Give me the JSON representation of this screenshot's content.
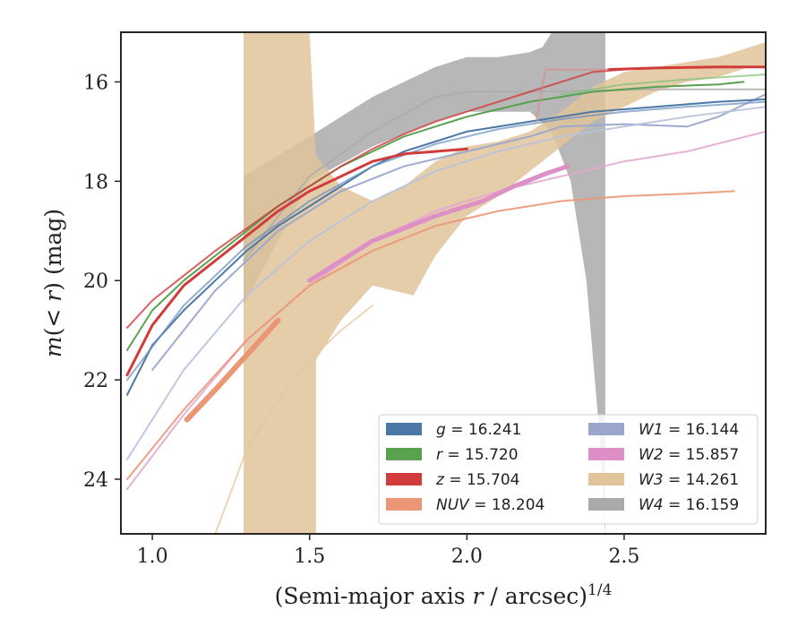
{
  "chart_data": {
    "type": "line",
    "xlabel": "(Semi-major axis r / arcsec)",
    "xlabel_main": "(Semi-major axis ",
    "xlabel_var": "r",
    "xlabel_rest": " / arcsec)",
    "xlabel_sup": "1/4",
    "ylabel": "m(< r) (mag)",
    "ylabel_m": "m",
    "ylabel_mid": "(< ",
    "ylabel_r": "r",
    "ylabel_end": ") (mag)",
    "xlim": [
      0.9,
      2.95
    ],
    "ylim": [
      25.1,
      15.0
    ],
    "y_inverted": true,
    "grid": false,
    "legend_position": "lower-right",
    "xticks": [
      {
        "value": 1.0,
        "label": "1.0"
      },
      {
        "value": 1.5,
        "label": "1.5"
      },
      {
        "value": 2.0,
        "label": "2.0"
      },
      {
        "value": 2.5,
        "label": "2.5"
      }
    ],
    "yticks": [
      {
        "value": 16,
        "label": "16"
      },
      {
        "value": 18,
        "label": "18"
      },
      {
        "value": 20,
        "label": "20"
      },
      {
        "value": 22,
        "label": "22"
      },
      {
        "value": 24,
        "label": "24"
      }
    ],
    "legend": [
      {
        "band": "g",
        "value": "16.241",
        "color": "#4c78a8"
      },
      {
        "band": "W1",
        "value": "16.144",
        "color": "#9aa6cc"
      },
      {
        "band": "r",
        "value": "15.720",
        "color": "#59a14f"
      },
      {
        "band": "W2",
        "value": "15.857",
        "color": "#de8fc6"
      },
      {
        "band": "z",
        "value": "15.704",
        "color": "#d13b3b"
      },
      {
        "band": "W3",
        "value": "14.261",
        "color": "#e2c49b"
      },
      {
        "band": "NUV",
        "value": "18.204",
        "color": "#eb9674"
      },
      {
        "band": "W4",
        "value": "16.159",
        "color": "#aaaaaa"
      }
    ],
    "bands": [
      {
        "name": "W4",
        "color": "#aaaaaa",
        "opacity": 0.85,
        "upper": [
          [
            1.29,
            17.9
          ],
          [
            1.5,
            17.1
          ],
          [
            1.7,
            16.3
          ],
          [
            1.9,
            15.7
          ],
          [
            2.0,
            15.5
          ],
          [
            2.1,
            15.5
          ],
          [
            2.2,
            15.4
          ],
          [
            2.24,
            15.3
          ],
          [
            2.27,
            15.0
          ],
          [
            2.44,
            15.0
          ]
        ],
        "lower": [
          [
            1.29,
            20.5
          ],
          [
            1.5,
            18.0
          ],
          [
            1.7,
            17.3
          ],
          [
            1.9,
            16.8
          ],
          [
            2.0,
            16.6
          ],
          [
            2.1,
            16.6
          ],
          [
            2.2,
            16.6
          ],
          [
            2.27,
            17.0
          ],
          [
            2.33,
            18.0
          ],
          [
            2.38,
            20.0
          ],
          [
            2.42,
            23.0
          ],
          [
            2.44,
            25.1
          ]
        ]
      },
      {
        "name": "W3",
        "color": "#e2c49b",
        "opacity": 0.85,
        "upper": [
          [
            1.29,
            15.0
          ],
          [
            1.5,
            15.0
          ],
          [
            1.52,
            17.5
          ],
          [
            1.6,
            18.1
          ],
          [
            1.7,
            18.4
          ],
          [
            1.8,
            18.1
          ],
          [
            1.9,
            17.6
          ],
          [
            2.0,
            17.3
          ],
          [
            2.1,
            17.2
          ],
          [
            2.2,
            17.0
          ],
          [
            2.3,
            16.6
          ],
          [
            2.4,
            16.1
          ],
          [
            2.5,
            15.8
          ],
          [
            2.6,
            15.7
          ],
          [
            2.7,
            15.6
          ],
          [
            2.8,
            15.5
          ],
          [
            2.9,
            15.3
          ],
          [
            2.95,
            15.2
          ]
        ],
        "lower": [
          [
            1.29,
            25.1
          ],
          [
            1.52,
            25.1
          ],
          [
            1.52,
            21.6
          ],
          [
            1.6,
            20.8
          ],
          [
            1.7,
            20.1
          ],
          [
            1.83,
            20.3
          ],
          [
            1.9,
            19.5
          ],
          [
            2.0,
            18.7
          ],
          [
            2.1,
            18.3
          ],
          [
            2.2,
            17.8
          ],
          [
            2.3,
            17.3
          ],
          [
            2.4,
            16.8
          ],
          [
            2.5,
            16.5
          ],
          [
            2.6,
            16.2
          ],
          [
            2.7,
            16.0
          ],
          [
            2.8,
            15.9
          ],
          [
            2.9,
            15.7
          ],
          [
            2.95,
            15.7
          ]
        ]
      }
    ],
    "series": [
      {
        "name": "W3",
        "color": "#e2c49b",
        "width": 2,
        "opacity": 0.7,
        "points": [
          [
            1.2,
            25.1
          ],
          [
            1.3,
            23.4
          ],
          [
            1.4,
            22.4
          ],
          [
            1.5,
            21.6
          ],
          [
            1.6,
            21.0
          ],
          [
            1.7,
            20.5
          ]
        ]
      },
      {
        "name": "W4",
        "color": "#aaaaaa",
        "width": 2,
        "opacity": 0.8,
        "points": [
          [
            1.29,
            19.6
          ],
          [
            1.5,
            17.9
          ],
          [
            1.7,
            17.0
          ],
          [
            1.9,
            16.3
          ],
          [
            2.0,
            16.2
          ],
          [
            2.2,
            16.2
          ],
          [
            2.6,
            16.15
          ],
          [
            2.95,
            16.15
          ]
        ]
      },
      {
        "name": "W1",
        "color": "#9aa6cc",
        "width": 2,
        "opacity": 0.95,
        "points": [
          [
            1.0,
            21.8
          ],
          [
            1.2,
            20.2
          ],
          [
            1.4,
            19.0
          ],
          [
            1.6,
            18.2
          ],
          [
            1.8,
            17.7
          ],
          [
            2.0,
            17.4
          ],
          [
            2.2,
            17.1
          ],
          [
            2.3,
            16.9
          ],
          [
            2.5,
            16.85
          ],
          [
            2.7,
            16.9
          ],
          [
            2.8,
            16.7
          ],
          [
            2.9,
            16.4
          ],
          [
            2.95,
            16.25
          ]
        ]
      },
      {
        "name": "W1",
        "color": "#b8c2da",
        "width": 2,
        "opacity": 0.9,
        "points": [
          [
            0.92,
            23.6
          ],
          [
            1.1,
            21.8
          ],
          [
            1.3,
            20.3
          ],
          [
            1.5,
            19.2
          ],
          [
            1.7,
            18.4
          ],
          [
            1.9,
            17.8
          ],
          [
            2.1,
            17.4
          ],
          [
            2.3,
            17.1
          ],
          [
            2.5,
            16.9
          ],
          [
            2.7,
            16.7
          ],
          [
            2.95,
            16.5
          ]
        ]
      },
      {
        "name": "W2",
        "color": "#e2a8cf",
        "width": 2,
        "opacity": 0.9,
        "points": [
          [
            0.92,
            24.2
          ],
          [
            1.1,
            22.7
          ],
          [
            1.3,
            21.2
          ],
          [
            1.5,
            20.1
          ],
          [
            1.7,
            19.2
          ],
          [
            1.9,
            18.6
          ],
          [
            2.1,
            18.2
          ],
          [
            2.3,
            17.9
          ],
          [
            2.5,
            17.6
          ],
          [
            2.7,
            17.4
          ],
          [
            2.95,
            17.0
          ]
        ]
      },
      {
        "name": "W2",
        "color": "#de8fc6",
        "width": 5,
        "opacity": 1.0,
        "points": [
          [
            1.5,
            20.0
          ],
          [
            1.7,
            19.2
          ],
          [
            1.9,
            18.7
          ],
          [
            2.05,
            18.4
          ],
          [
            2.15,
            18.1
          ],
          [
            2.25,
            17.85
          ],
          [
            2.32,
            17.7
          ]
        ]
      },
      {
        "name": "NUV",
        "color": "#eb9674",
        "width": 2,
        "opacity": 0.9,
        "points": [
          [
            0.92,
            24.0
          ],
          [
            1.1,
            22.6
          ],
          [
            1.3,
            21.2
          ],
          [
            1.5,
            20.1
          ],
          [
            1.7,
            19.4
          ],
          [
            1.9,
            18.9
          ],
          [
            2.1,
            18.6
          ],
          [
            2.3,
            18.4
          ],
          [
            2.5,
            18.3
          ],
          [
            2.7,
            18.25
          ],
          [
            2.85,
            18.2
          ]
        ]
      },
      {
        "name": "NUV",
        "color": "#eb9674",
        "width": 6,
        "opacity": 1.0,
        "points": [
          [
            1.11,
            22.8
          ],
          [
            1.2,
            22.2
          ],
          [
            1.3,
            21.5
          ],
          [
            1.4,
            20.8
          ]
        ]
      },
      {
        "name": "g",
        "color": "#4c78a8",
        "width": 2,
        "opacity": 1.0,
        "points": [
          [
            0.92,
            22.3
          ],
          [
            1.0,
            21.3
          ],
          [
            1.1,
            20.6
          ],
          [
            1.2,
            20.0
          ],
          [
            1.3,
            19.4
          ],
          [
            1.4,
            18.9
          ],
          [
            1.5,
            18.5
          ],
          [
            1.6,
            18.1
          ],
          [
            1.7,
            17.7
          ],
          [
            1.8,
            17.4
          ],
          [
            1.9,
            17.2
          ],
          [
            2.0,
            17.0
          ],
          [
            2.2,
            16.8
          ],
          [
            2.4,
            16.6
          ],
          [
            2.6,
            16.5
          ],
          [
            2.8,
            16.4
          ],
          [
            2.95,
            16.35
          ]
        ]
      },
      {
        "name": "g",
        "color": "#6a8fbd",
        "width": 2,
        "opacity": 0.7,
        "points": [
          [
            0.92,
            22.0
          ],
          [
            1.1,
            20.5
          ],
          [
            1.3,
            19.3
          ],
          [
            1.5,
            18.4
          ],
          [
            1.7,
            17.7
          ],
          [
            1.9,
            17.25
          ],
          [
            2.1,
            16.95
          ],
          [
            2.3,
            16.75
          ],
          [
            2.5,
            16.6
          ],
          [
            2.7,
            16.5
          ],
          [
            2.95,
            16.4
          ]
        ]
      },
      {
        "name": "r",
        "color": "#59a14f",
        "width": 2,
        "opacity": 1.0,
        "points": [
          [
            0.92,
            21.4
          ],
          [
            1.0,
            20.6
          ],
          [
            1.1,
            20.0
          ],
          [
            1.2,
            19.5
          ],
          [
            1.3,
            19.0
          ],
          [
            1.4,
            18.5
          ],
          [
            1.5,
            18.1
          ],
          [
            1.6,
            17.7
          ],
          [
            1.7,
            17.4
          ],
          [
            1.8,
            17.1
          ],
          [
            1.9,
            16.9
          ],
          [
            2.0,
            16.7
          ],
          [
            2.2,
            16.4
          ],
          [
            2.4,
            16.2
          ],
          [
            2.6,
            16.1
          ],
          [
            2.8,
            16.05
          ],
          [
            2.88,
            16.0
          ]
        ]
      },
      {
        "name": "r",
        "color": "#7fbf75",
        "width": 2,
        "opacity": 0.7,
        "points": [
          [
            2.3,
            16.25
          ],
          [
            2.5,
            16.05
          ],
          [
            2.7,
            15.95
          ],
          [
            2.95,
            15.85
          ]
        ]
      },
      {
        "name": "z",
        "color": "#d13b3b",
        "width": 2,
        "opacity": 0.8,
        "points": [
          [
            0.92,
            20.95
          ],
          [
            1.0,
            20.4
          ],
          [
            1.1,
            19.9
          ],
          [
            1.2,
            19.4
          ],
          [
            1.3,
            18.95
          ],
          [
            1.4,
            18.5
          ],
          [
            1.5,
            18.1
          ],
          [
            1.6,
            17.7
          ],
          [
            1.7,
            17.35
          ],
          [
            1.8,
            17.05
          ],
          [
            1.9,
            16.8
          ],
          [
            2.0,
            16.6
          ],
          [
            2.1,
            16.4
          ],
          [
            2.2,
            16.2
          ],
          [
            2.3,
            16.0
          ],
          [
            2.4,
            15.8
          ],
          [
            2.5,
            15.75
          ]
        ]
      },
      {
        "name": "z",
        "color": "#d13b3b",
        "width": 3,
        "opacity": 1.0,
        "points": [
          [
            0.92,
            21.9
          ],
          [
            1.0,
            20.9
          ],
          [
            1.1,
            20.1
          ],
          [
            1.2,
            19.6
          ],
          [
            1.3,
            19.1
          ],
          [
            1.4,
            18.6
          ],
          [
            1.5,
            18.2
          ],
          [
            1.6,
            17.9
          ],
          [
            1.7,
            17.6
          ],
          [
            1.8,
            17.45
          ],
          [
            1.9,
            17.4
          ],
          [
            2.0,
            17.35
          ]
        ]
      },
      {
        "name": "z",
        "color": "#d13b3b",
        "width": 3,
        "opacity": 1.0,
        "points": [
          [
            2.45,
            15.75
          ],
          [
            2.6,
            15.72
          ],
          [
            2.8,
            15.7
          ],
          [
            2.95,
            15.7
          ]
        ]
      },
      {
        "name": "z",
        "color": "#d98c8c",
        "width": 2,
        "opacity": 0.7,
        "points": [
          [
            2.22,
            16.8
          ],
          [
            2.25,
            15.75
          ],
          [
            2.45,
            15.75
          ]
        ]
      }
    ]
  }
}
